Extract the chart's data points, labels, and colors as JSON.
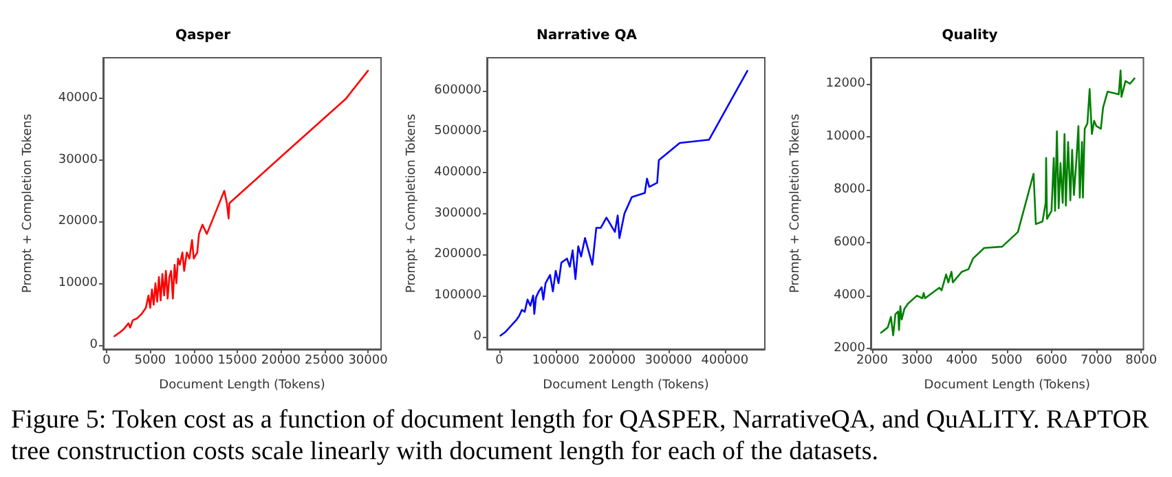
{
  "chart_data": [
    {
      "type": "line",
      "title": "Qasper",
      "xlabel": "Document Length (Tokens)",
      "ylabel": "Prompt + Completion Tokens",
      "xlim": [
        -400,
        31500
      ],
      "ylim": [
        -700,
        46600
      ],
      "xticks": [
        0,
        5000,
        10000,
        15000,
        20000,
        25000,
        30000
      ],
      "yticks": [
        0,
        10000,
        20000,
        30000,
        40000
      ],
      "grid": false,
      "marker": "none",
      "line_style": "solid",
      "annotations": [
        "Figure 5: Token cost as a function of document length for QASPER, NarrativeQA, and QuALITY. RAPTOR tree construction costs scale linearly with document length for each of the datasets."
      ],
      "series": [
        {
          "color": "#ff0000",
          "x": [
            900,
            1500,
            2000,
            2500,
            2700,
            3000,
            3500,
            4000,
            4500,
            4800,
            5000,
            5200,
            5400,
            5600,
            5800,
            6000,
            6200,
            6400,
            6600,
            6800,
            7000,
            7200,
            7400,
            7600,
            7800,
            8000,
            8200,
            8400,
            8700,
            8900,
            9200,
            9500,
            9800,
            10000,
            10400,
            10600,
            11000,
            11500,
            13500,
            13800,
            14000,
            14100,
            20000,
            27500,
            30000
          ],
          "values": [
            1400,
            2000,
            2600,
            3500,
            2800,
            4000,
            4300,
            5000,
            6000,
            8000,
            6000,
            9000,
            6500,
            10000,
            7000,
            11000,
            7200,
            11500,
            8000,
            12000,
            7500,
            11000,
            12000,
            7500,
            13000,
            10000,
            14000,
            13000,
            15000,
            12000,
            15000,
            14000,
            17000,
            14000,
            15000,
            18000,
            19500,
            18000,
            25000,
            23000,
            20500,
            23000,
            30500,
            40000,
            44500
          ]
        }
      ]
    },
    {
      "type": "line",
      "title": "Narrative QA",
      "xlabel": "Document Length (Tokens)",
      "ylabel": "Prompt + Completion Tokens",
      "xlim": [
        -22000,
        471000
      ],
      "ylim": [
        -31000,
        680000
      ],
      "xticks": [
        0,
        100000,
        200000,
        300000,
        400000
      ],
      "yticks": [
        0,
        100000,
        200000,
        300000,
        400000,
        500000,
        600000
      ],
      "grid": false,
      "marker": "none",
      "line_style": "solid",
      "series": [
        {
          "color": "#0000ff",
          "x": [
            2000,
            10000,
            20000,
            30000,
            35000,
            40000,
            45000,
            50000,
            55000,
            60000,
            62000,
            65000,
            70000,
            75000,
            78000,
            82000,
            90000,
            95000,
            100000,
            105000,
            110000,
            120000,
            125000,
            130000,
            135000,
            140000,
            145000,
            152000,
            165000,
            172000,
            180000,
            190000,
            205000,
            210000,
            213000,
            222000,
            235000,
            258000,
            262000,
            266000,
            280000,
            283000,
            320000,
            372000,
            440000
          ],
          "values": [
            2000,
            10000,
            25000,
            40000,
            50000,
            65000,
            60000,
            90000,
            75000,
            100000,
            55000,
            95000,
            110000,
            120000,
            90000,
            130000,
            150000,
            110000,
            160000,
            130000,
            180000,
            190000,
            170000,
            210000,
            140000,
            220000,
            195000,
            240000,
            175000,
            265000,
            265000,
            290000,
            255000,
            295000,
            240000,
            300000,
            340000,
            350000,
            385000,
            365000,
            375000,
            430000,
            472000,
            480000,
            648000
          ]
        }
      ]
    },
    {
      "type": "line",
      "title": "Quality",
      "xlabel": "Document Length (Tokens)",
      "ylabel": "Prompt + Completion Tokens",
      "xlim": [
        1970,
        8050
      ],
      "ylim": [
        1980,
        12980
      ],
      "xticks": [
        2000,
        3000,
        4000,
        5000,
        6000,
        7000,
        8000
      ],
      "yticks": [
        2000,
        4000,
        6000,
        8000,
        10000,
        12000
      ],
      "grid": false,
      "marker": "none",
      "line_style": "solid",
      "series": [
        {
          "color": "#008000",
          "x": [
            2200,
            2350,
            2420,
            2470,
            2520,
            2580,
            2600,
            2630,
            2660,
            2720,
            2800,
            3000,
            3120,
            3150,
            3180,
            3500,
            3550,
            3650,
            3700,
            3770,
            3800,
            4000,
            4150,
            4250,
            4500,
            4900,
            5250,
            5600,
            5650,
            5800,
            5870,
            5880,
            5900,
            6000,
            6050,
            6080,
            6120,
            6160,
            6200,
            6250,
            6290,
            6320,
            6370,
            6420,
            6460,
            6500,
            6550,
            6600,
            6630,
            6680,
            6700,
            6740,
            6800,
            6850,
            6900,
            6950,
            7000,
            7100,
            7150,
            7250,
            7500,
            7540,
            7560,
            7650,
            7750,
            7850
          ],
          "values": [
            2600,
            2800,
            3200,
            2500,
            3300,
            3400,
            2700,
            3600,
            3100,
            3500,
            3700,
            4000,
            3900,
            4100,
            3900,
            4300,
            4200,
            4800,
            4500,
            4900,
            4500,
            4900,
            5000,
            5400,
            5800,
            5850,
            6400,
            8600,
            6700,
            6800,
            7500,
            9200,
            6900,
            7200,
            9200,
            7200,
            10200,
            7300,
            9000,
            7500,
            10100,
            7400,
            9800,
            7600,
            9500,
            7800,
            9000,
            10400,
            7700,
            9800,
            7700,
            10300,
            10500,
            11800,
            10100,
            10600,
            10400,
            10300,
            11100,
            11700,
            11600,
            12500,
            11500,
            12100,
            12000,
            12200
          ]
        }
      ]
    }
  ]
}
